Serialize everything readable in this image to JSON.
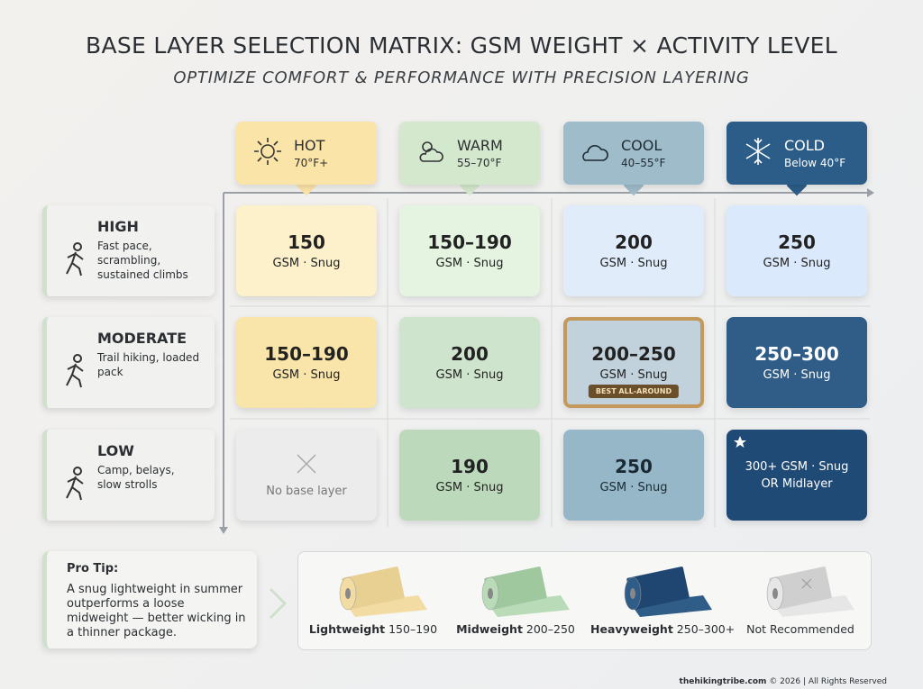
{
  "header": {
    "title": "BASE LAYER SELECTION MATRIX: GSM WEIGHT × ACTIVITY LEVEL",
    "subtitle": "OPTIMIZE COMFORT & PERFORMANCE WITH PRECISION LAYERING"
  },
  "columns": [
    {
      "name": "HOT",
      "range": "70°F+"
    },
    {
      "name": "WARM",
      "range": "55–70°F"
    },
    {
      "name": "COOL",
      "range": "40–55°F"
    },
    {
      "name": "COLD",
      "range": "Below 40°F"
    }
  ],
  "rows": [
    {
      "name": "HIGH",
      "description": "Fast pace, scrambling, sustained climbs",
      "cells": [
        {
          "value": "150",
          "detail": "GSM · Snug"
        },
        {
          "value": "150–190",
          "detail": "GSM · Snug"
        },
        {
          "value": "200",
          "detail": "GSM · Snug"
        },
        {
          "value": "250",
          "detail": "GSM · Snug"
        }
      ]
    },
    {
      "name": "MODERATE",
      "description": "Trail hiking, loaded pack",
      "cells": [
        {
          "value": "150–190",
          "detail": "GSM · Snug"
        },
        {
          "value": "200",
          "detail": "GSM · Snug"
        },
        {
          "value": "200–250",
          "detail": "GSM · Snug",
          "badge": "BEST ALL-AROUND"
        },
        {
          "value": "250–300",
          "detail": "GSM · Snug"
        }
      ]
    },
    {
      "name": "LOW",
      "description": "Camp, belays, slow strolls",
      "cells": [
        {
          "label": "No base layer"
        },
        {
          "value": "190",
          "detail": "GSM · Snug"
        },
        {
          "value": "250",
          "detail": "GSM · Snug"
        },
        {
          "label": "300+ GSM · Snug",
          "note": "OR Midlayer"
        }
      ]
    }
  ],
  "tip": {
    "title": "Pro Tip:",
    "text": "A snug lightweight in summer outperforms a loose midweight — better wicking in a thinner package."
  },
  "legend": [
    {
      "name": "Lightweight",
      "range": "150–190"
    },
    {
      "name": "Midweight",
      "range": "200–250"
    },
    {
      "name": "Heavyweight",
      "range": "250–300+"
    },
    {
      "name": "Not Recommended"
    }
  ],
  "footer": {
    "site": "thehikingtribe.com",
    "notice": "© 2026 | All Rights Reserved"
  }
}
